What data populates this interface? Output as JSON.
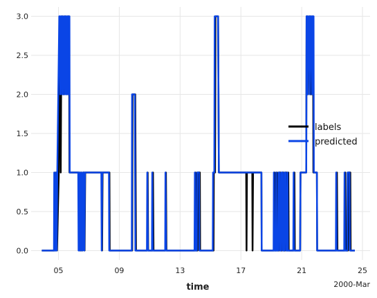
{
  "chart_data": {
    "type": "line",
    "title": "",
    "xlabel": "time",
    "ylabel": "",
    "x_offset_label": "2000-Mar",
    "grid": true,
    "legend_position": "center-right",
    "xlim": [
      3.2,
      25.5
    ],
    "ylim": [
      -0.12,
      3.12
    ],
    "x_ticks": [
      {
        "value": 5,
        "label": "05"
      },
      {
        "value": 9,
        "label": "09"
      },
      {
        "value": 13,
        "label": "13"
      },
      {
        "value": 17,
        "label": "17"
      },
      {
        "value": 21,
        "label": "21"
      },
      {
        "value": 25,
        "label": "25"
      }
    ],
    "y_ticks": [
      {
        "value": 0.0,
        "label": "0.0"
      },
      {
        "value": 0.5,
        "label": "0.5"
      },
      {
        "value": 1.0,
        "label": "1.0"
      },
      {
        "value": 1.5,
        "label": "1.5"
      },
      {
        "value": 2.0,
        "label": "2.0"
      },
      {
        "value": 2.5,
        "label": "2.5"
      },
      {
        "value": 3.0,
        "label": "3.0"
      }
    ],
    "series": [
      {
        "name": "labels",
        "color": "#000000",
        "points": [
          [
            3.9,
            0
          ],
          [
            4.75,
            0
          ],
          [
            4.8,
            1
          ],
          [
            4.83,
            0
          ],
          [
            4.87,
            1
          ],
          [
            4.9,
            0
          ],
          [
            5.02,
            1
          ],
          [
            5.1,
            3
          ],
          [
            5.12,
            2
          ],
          [
            5.15,
            1
          ],
          [
            5.2,
            3
          ],
          [
            5.3,
            3
          ],
          [
            5.35,
            2
          ],
          [
            5.4,
            3
          ],
          [
            5.5,
            3
          ],
          [
            5.55,
            2
          ],
          [
            5.6,
            3
          ],
          [
            5.7,
            3
          ],
          [
            5.72,
            1
          ],
          [
            6.35,
            1
          ],
          [
            6.37,
            0
          ],
          [
            6.42,
            1
          ],
          [
            6.45,
            0
          ],
          [
            6.5,
            1
          ],
          [
            6.55,
            0
          ],
          [
            6.62,
            1
          ],
          [
            6.7,
            1
          ],
          [
            6.72,
            0
          ],
          [
            6.76,
            1
          ],
          [
            7.85,
            1
          ],
          [
            7.87,
            0
          ],
          [
            7.9,
            1
          ],
          [
            8.35,
            1
          ],
          [
            8.37,
            0
          ],
          [
            9.85,
            0
          ],
          [
            9.87,
            2
          ],
          [
            10.05,
            2
          ],
          [
            10.1,
            0
          ],
          [
            10.85,
            0
          ],
          [
            10.87,
            1
          ],
          [
            10.9,
            0
          ],
          [
            11.2,
            0
          ],
          [
            11.22,
            1
          ],
          [
            11.25,
            0
          ],
          [
            12.05,
            0
          ],
          [
            12.07,
            1
          ],
          [
            12.1,
            0
          ],
          [
            14.0,
            0
          ],
          [
            14.02,
            1
          ],
          [
            14.05,
            0
          ],
          [
            14.15,
            0
          ],
          [
            14.17,
            1
          ],
          [
            14.3,
            1
          ],
          [
            14.32,
            0
          ],
          [
            15.2,
            0
          ],
          [
            15.22,
            1
          ],
          [
            15.3,
            1
          ],
          [
            15.33,
            3
          ],
          [
            15.5,
            3
          ],
          [
            15.55,
            1
          ],
          [
            17.35,
            1
          ],
          [
            17.37,
            0
          ],
          [
            17.4,
            1
          ],
          [
            17.75,
            1
          ],
          [
            17.77,
            0
          ],
          [
            17.8,
            1
          ],
          [
            18.35,
            1
          ],
          [
            18.37,
            0
          ],
          [
            19.2,
            0
          ],
          [
            19.22,
            1
          ],
          [
            19.25,
            0
          ],
          [
            19.35,
            0
          ],
          [
            19.37,
            1
          ],
          [
            19.4,
            0
          ],
          [
            19.5,
            0
          ],
          [
            19.52,
            1
          ],
          [
            19.6,
            1
          ],
          [
            19.62,
            0
          ],
          [
            19.7,
            0
          ],
          [
            19.72,
            1
          ],
          [
            19.8,
            1
          ],
          [
            19.82,
            0
          ],
          [
            19.9,
            0
          ],
          [
            19.92,
            1
          ],
          [
            20.0,
            1
          ],
          [
            20.02,
            0
          ],
          [
            20.1,
            0
          ],
          [
            20.12,
            1
          ],
          [
            20.15,
            0
          ],
          [
            20.5,
            0
          ],
          [
            20.52,
            1
          ],
          [
            20.55,
            0
          ],
          [
            20.9,
            0
          ],
          [
            20.92,
            1
          ],
          [
            21.3,
            1
          ],
          [
            21.32,
            3
          ],
          [
            21.4,
            3
          ],
          [
            21.42,
            2
          ],
          [
            21.5,
            3
          ],
          [
            21.6,
            3
          ],
          [
            21.62,
            2
          ],
          [
            21.7,
            3
          ],
          [
            21.75,
            3
          ],
          [
            21.77,
            1
          ],
          [
            22.0,
            1
          ],
          [
            22.02,
            0
          ],
          [
            23.3,
            0
          ],
          [
            23.32,
            1
          ],
          [
            23.35,
            0
          ],
          [
            23.85,
            0
          ],
          [
            23.87,
            1
          ],
          [
            23.9,
            0
          ],
          [
            24.05,
            0
          ],
          [
            24.07,
            1
          ],
          [
            24.2,
            1
          ],
          [
            24.22,
            0
          ],
          [
            24.5,
            0
          ]
        ]
      },
      {
        "name": "predicted",
        "color": "#0a45e6",
        "points": [
          [
            3.9,
            0
          ],
          [
            4.7,
            0
          ],
          [
            4.72,
            1
          ],
          [
            4.75,
            0
          ],
          [
            4.82,
            0
          ],
          [
            4.84,
            1
          ],
          [
            4.88,
            0
          ],
          [
            4.92,
            1
          ],
          [
            5.05,
            3
          ],
          [
            5.1,
            3
          ],
          [
            5.12,
            2
          ],
          [
            5.16,
            3
          ],
          [
            5.22,
            3
          ],
          [
            5.24,
            2
          ],
          [
            5.28,
            3
          ],
          [
            5.32,
            2
          ],
          [
            5.36,
            3
          ],
          [
            5.42,
            3
          ],
          [
            5.44,
            2
          ],
          [
            5.48,
            3
          ],
          [
            5.52,
            3
          ],
          [
            5.54,
            2
          ],
          [
            5.58,
            3
          ],
          [
            5.62,
            3
          ],
          [
            5.64,
            2
          ],
          [
            5.68,
            3
          ],
          [
            5.72,
            3
          ],
          [
            5.74,
            1
          ],
          [
            6.3,
            1
          ],
          [
            6.32,
            0
          ],
          [
            6.36,
            1
          ],
          [
            6.4,
            0
          ],
          [
            6.45,
            1
          ],
          [
            6.5,
            0
          ],
          [
            6.55,
            1
          ],
          [
            6.6,
            0
          ],
          [
            6.64,
            1
          ],
          [
            6.68,
            1
          ],
          [
            6.7,
            0
          ],
          [
            6.74,
            1
          ],
          [
            7.82,
            1
          ],
          [
            7.84,
            0
          ],
          [
            7.88,
            1
          ],
          [
            8.32,
            1
          ],
          [
            8.34,
            0
          ],
          [
            9.82,
            0
          ],
          [
            9.84,
            2
          ],
          [
            10.02,
            2
          ],
          [
            10.06,
            0
          ],
          [
            10.82,
            0
          ],
          [
            10.84,
            1
          ],
          [
            10.88,
            0
          ],
          [
            11.15,
            0
          ],
          [
            11.17,
            1
          ],
          [
            11.2,
            0
          ],
          [
            12.02,
            0
          ],
          [
            12.04,
            1
          ],
          [
            12.08,
            0
          ],
          [
            13.95,
            0
          ],
          [
            13.97,
            1
          ],
          [
            14.0,
            0
          ],
          [
            14.1,
            0
          ],
          [
            14.12,
            1
          ],
          [
            14.25,
            1
          ],
          [
            14.27,
            0
          ],
          [
            15.15,
            0
          ],
          [
            15.17,
            1
          ],
          [
            15.25,
            1
          ],
          [
            15.28,
            3
          ],
          [
            15.5,
            3
          ],
          [
            15.55,
            1
          ],
          [
            18.35,
            1
          ],
          [
            18.37,
            0
          ],
          [
            19.15,
            0
          ],
          [
            19.17,
            1
          ],
          [
            19.2,
            0
          ],
          [
            19.3,
            0
          ],
          [
            19.32,
            1
          ],
          [
            19.35,
            0
          ],
          [
            19.45,
            0
          ],
          [
            19.47,
            1
          ],
          [
            19.55,
            1
          ],
          [
            19.57,
            0
          ],
          [
            19.65,
            0
          ],
          [
            19.67,
            1
          ],
          [
            19.75,
            1
          ],
          [
            19.77,
            0
          ],
          [
            19.85,
            0
          ],
          [
            19.87,
            1
          ],
          [
            19.95,
            1
          ],
          [
            19.97,
            0
          ],
          [
            20.05,
            0
          ],
          [
            20.07,
            1
          ],
          [
            20.1,
            0
          ],
          [
            20.45,
            0
          ],
          [
            20.47,
            1
          ],
          [
            20.5,
            0
          ],
          [
            20.9,
            0
          ],
          [
            20.92,
            1
          ],
          [
            21.3,
            1
          ],
          [
            21.32,
            3
          ],
          [
            21.38,
            3
          ],
          [
            21.4,
            2
          ],
          [
            21.46,
            3
          ],
          [
            21.52,
            3
          ],
          [
            21.54,
            2
          ],
          [
            21.6,
            3
          ],
          [
            21.66,
            3
          ],
          [
            21.68,
            2
          ],
          [
            21.72,
            3
          ],
          [
            21.78,
            3
          ],
          [
            21.8,
            1
          ],
          [
            22.0,
            1
          ],
          [
            22.02,
            0
          ],
          [
            23.25,
            0
          ],
          [
            23.27,
            1
          ],
          [
            23.3,
            0
          ],
          [
            23.8,
            0
          ],
          [
            23.82,
            1
          ],
          [
            23.85,
            0
          ],
          [
            24.0,
            0
          ],
          [
            24.02,
            1
          ],
          [
            24.15,
            1
          ],
          [
            24.17,
            0
          ],
          [
            24.5,
            0
          ]
        ]
      }
    ]
  }
}
